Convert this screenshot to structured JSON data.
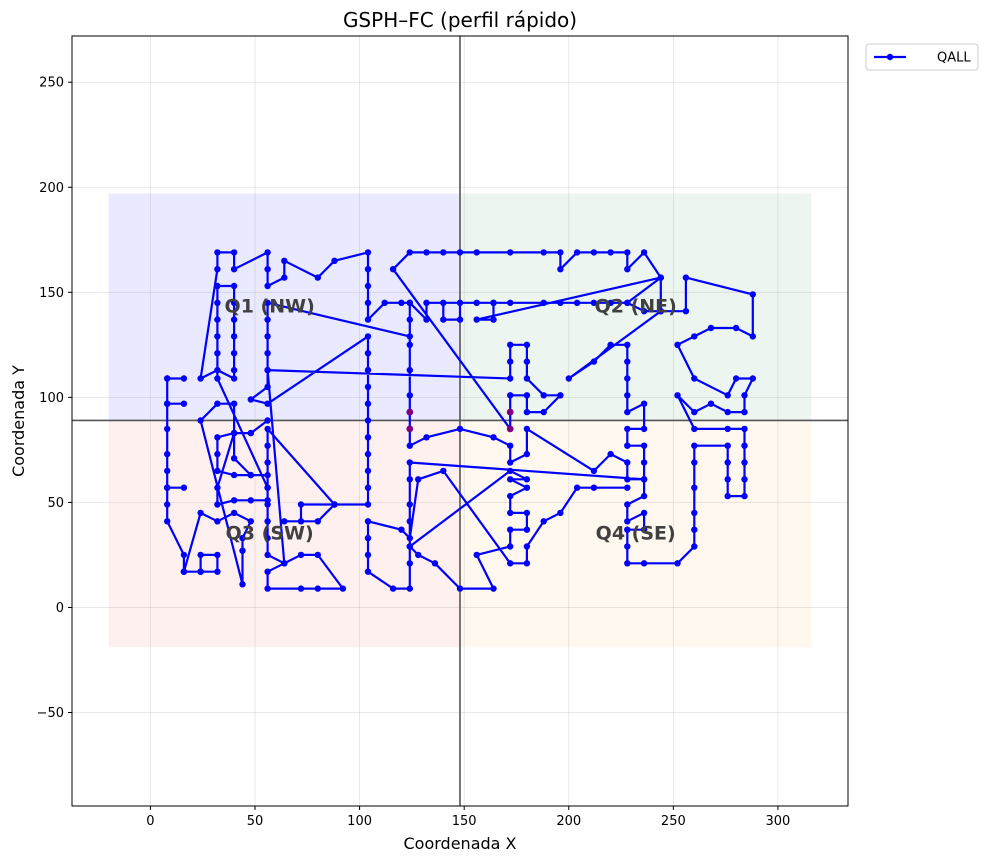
{
  "chart_data": {
    "type": "line",
    "title": "GSPH–FC (perfil rápido)",
    "xlabel": "Coordenada X",
    "ylabel": "Coordenada Y",
    "xlim": [
      -37.5,
      333.5
    ],
    "ylim": [
      -94.5,
      272
    ],
    "xticks": [
      0,
      50,
      100,
      150,
      200,
      250,
      300
    ],
    "yticks": [
      -50,
      0,
      50,
      100,
      150,
      200,
      250
    ],
    "grid": true,
    "legend": {
      "placement": "outside top-right",
      "entries": [
        "QALL"
      ]
    },
    "colors": {
      "series": "#0000ff",
      "ref_lines": "#555555",
      "marked_point": "#800080"
    },
    "ref_lines": {
      "x": 148,
      "y": 89
    },
    "regions": [
      {
        "label": "Q1 (NW)",
        "x": [
          -20,
          148
        ],
        "y": [
          89,
          197
        ],
        "color": "#0000ff",
        "label_at": [
          57,
          143
        ]
      },
      {
        "label": "Q2 (NE)",
        "x": [
          148,
          316
        ],
        "y": [
          89,
          197
        ],
        "color": "#2e8b57",
        "label_at": [
          232,
          143
        ]
      },
      {
        "label": "Q3 (SW)",
        "x": [
          -20,
          148
        ],
        "y": [
          -19,
          89
        ],
        "color": "#ff5555",
        "label_at": [
          57,
          35
        ]
      },
      {
        "label": "Q4 (SE)",
        "x": [
          148,
          316
        ],
        "y": [
          -19,
          89
        ],
        "color": "#f5b14a",
        "label_at": [
          232,
          35
        ]
      }
    ],
    "series": [
      {
        "name": "QALL",
        "points": [
          [
            8,
            109
          ],
          [
            16,
            109
          ],
          [
            8,
            109
          ],
          [
            8,
            97
          ],
          [
            16,
            97
          ],
          [
            8,
            97
          ],
          [
            8,
            85
          ],
          [
            8,
            73
          ],
          [
            8,
            65
          ],
          [
            8,
            57
          ],
          [
            16,
            57
          ],
          [
            8,
            57
          ],
          [
            8,
            49
          ],
          [
            8,
            41
          ],
          [
            16,
            25
          ],
          [
            16,
            17
          ],
          [
            24,
            17
          ],
          [
            24,
            25
          ],
          [
            32,
            25
          ],
          [
            32,
            17
          ],
          [
            24,
            17
          ],
          [
            16,
            17
          ],
          [
            24,
            45
          ],
          [
            32,
            41
          ],
          [
            40,
            45
          ],
          [
            48,
            41
          ],
          [
            44,
            33
          ],
          [
            44,
            27
          ],
          [
            44,
            11
          ],
          [
            24,
            89
          ],
          [
            32,
            97
          ],
          [
            40,
            97
          ],
          [
            40,
            83
          ],
          [
            48,
            83
          ],
          [
            56,
            89
          ],
          [
            48,
            83
          ],
          [
            40,
            83
          ],
          [
            40,
            71
          ],
          [
            48,
            63
          ],
          [
            56,
            63
          ],
          [
            48,
            63
          ],
          [
            40,
            63
          ],
          [
            32,
            65
          ],
          [
            32,
            73
          ],
          [
            32,
            81
          ],
          [
            40,
            83
          ],
          [
            32,
            57
          ],
          [
            32,
            49
          ],
          [
            40,
            51
          ],
          [
            48,
            51
          ],
          [
            56,
            51
          ],
          [
            56,
            57
          ],
          [
            32,
            109
          ],
          [
            32,
            121
          ],
          [
            32,
            129
          ],
          [
            32,
            137
          ],
          [
            32,
            145
          ],
          [
            32,
            153
          ],
          [
            40,
            153
          ],
          [
            40,
            145
          ],
          [
            40,
            137
          ],
          [
            40,
            129
          ],
          [
            40,
            121
          ],
          [
            40,
            113
          ],
          [
            40,
            109
          ],
          [
            32,
            113
          ],
          [
            24,
            109
          ],
          [
            32,
            161
          ],
          [
            32,
            169
          ],
          [
            40,
            169
          ],
          [
            40,
            161
          ],
          [
            56,
            169
          ],
          [
            56,
            161
          ],
          [
            56,
            153
          ],
          [
            64,
            157
          ],
          [
            64,
            165
          ],
          [
            80,
            157
          ],
          [
            88,
            165
          ],
          [
            104,
            169
          ],
          [
            104,
            161
          ],
          [
            104,
            153
          ],
          [
            104,
            145
          ],
          [
            104,
            137
          ],
          [
            112,
            145
          ],
          [
            120,
            145
          ],
          [
            124,
            145
          ],
          [
            124,
            137
          ],
          [
            124,
            129
          ],
          [
            56,
            145
          ],
          [
            56,
            137
          ],
          [
            56,
            129
          ],
          [
            56,
            121
          ],
          [
            56,
            113
          ],
          [
            56,
            105
          ],
          [
            48,
            99
          ],
          [
            56,
            97
          ],
          [
            104,
            129
          ],
          [
            104,
            121
          ],
          [
            104,
            113
          ],
          [
            104,
            105
          ],
          [
            104,
            97
          ],
          [
            104,
            89
          ],
          [
            104,
            81
          ],
          [
            104,
            73
          ],
          [
            104,
            65
          ],
          [
            104,
            57
          ],
          [
            104,
            49
          ],
          [
            88,
            49
          ],
          [
            80,
            41
          ],
          [
            64,
            41
          ],
          [
            72,
            41
          ],
          [
            72,
            49
          ],
          [
            88,
            49
          ],
          [
            56,
            85
          ],
          [
            56,
            77
          ],
          [
            56,
            69
          ],
          [
            56,
            57
          ],
          [
            56,
            49
          ],
          [
            56,
            41
          ],
          [
            56,
            33
          ],
          [
            56,
            25
          ],
          [
            64,
            21
          ],
          [
            72,
            25
          ],
          [
            80,
            25
          ],
          [
            92,
            9
          ],
          [
            80,
            9
          ],
          [
            72,
            9
          ],
          [
            56,
            9
          ],
          [
            56,
            17
          ],
          [
            64,
            21
          ],
          [
            56,
            113
          ],
          [
            172,
            109
          ],
          [
            172,
            117
          ],
          [
            172,
            125
          ],
          [
            180,
            125
          ],
          [
            180,
            117
          ],
          [
            180,
            109
          ],
          [
            188,
            101
          ],
          [
            196,
            101
          ],
          [
            188,
            93
          ],
          [
            180,
            93
          ],
          [
            180,
            101
          ],
          [
            172,
            101
          ],
          [
            172,
            93
          ],
          [
            172,
            85
          ],
          [
            116,
            161
          ],
          [
            124,
            169
          ],
          [
            132,
            169
          ],
          [
            140,
            169
          ],
          [
            148,
            169
          ],
          [
            156,
            169
          ],
          [
            172,
            169
          ],
          [
            188,
            169
          ],
          [
            196,
            169
          ],
          [
            196,
            161
          ],
          [
            204,
            169
          ],
          [
            212,
            169
          ],
          [
            220,
            169
          ],
          [
            228,
            169
          ],
          [
            228,
            161
          ],
          [
            236,
            169
          ],
          [
            244,
            157
          ],
          [
            228,
            145
          ],
          [
            140,
            145
          ],
          [
            140,
            137
          ],
          [
            148,
            137
          ],
          [
            148,
            145
          ],
          [
            156,
            145
          ],
          [
            164,
            145
          ],
          [
            172,
            145
          ],
          [
            188,
            145
          ],
          [
            196,
            145
          ],
          [
            204,
            145
          ],
          [
            212,
            145
          ],
          [
            220,
            145
          ],
          [
            228,
            145
          ],
          [
            236,
            141
          ],
          [
            244,
            141
          ],
          [
            244,
            157
          ],
          [
            156,
            137
          ],
          [
            164,
            137
          ],
          [
            164,
            145
          ],
          [
            132,
            145
          ],
          [
            132,
            137
          ],
          [
            124,
            145
          ],
          [
            124,
            125
          ],
          [
            124,
            113
          ],
          [
            124,
            101
          ],
          [
            124,
            93
          ],
          [
            124,
            85
          ],
          [
            124,
            77
          ],
          [
            132,
            81
          ],
          [
            148,
            85
          ],
          [
            164,
            81
          ],
          [
            172,
            77
          ],
          [
            172,
            69
          ],
          [
            180,
            73
          ],
          [
            180,
            85
          ],
          [
            212,
            65
          ],
          [
            220,
            73
          ],
          [
            228,
            69
          ],
          [
            228,
            61
          ],
          [
            236,
            61
          ],
          [
            236,
            53
          ],
          [
            228,
            49
          ],
          [
            228,
            41
          ],
          [
            236,
            45
          ],
          [
            236,
            37
          ],
          [
            228,
            37
          ],
          [
            228,
            29
          ],
          [
            228,
            21
          ],
          [
            236,
            21
          ],
          [
            252,
            21
          ],
          [
            260,
            29
          ],
          [
            260,
            37
          ],
          [
            260,
            45
          ],
          [
            260,
            57
          ],
          [
            260,
            69
          ],
          [
            260,
            77
          ],
          [
            276,
            77
          ],
          [
            276,
            69
          ],
          [
            276,
            61
          ],
          [
            276,
            53
          ],
          [
            284,
            53
          ],
          [
            284,
            61
          ],
          [
            284,
            69
          ],
          [
            284,
            77
          ],
          [
            284,
            85
          ],
          [
            276,
            85
          ],
          [
            260,
            85
          ],
          [
            252,
            101
          ],
          [
            260,
            93
          ],
          [
            268,
            97
          ],
          [
            276,
            93
          ],
          [
            284,
            93
          ],
          [
            284,
            101
          ],
          [
            288,
            109
          ],
          [
            280,
            109
          ],
          [
            276,
            101
          ],
          [
            260,
            109
          ],
          [
            252,
            125
          ],
          [
            260,
            129
          ],
          [
            268,
            133
          ],
          [
            280,
            133
          ],
          [
            288,
            129
          ],
          [
            288,
            149
          ],
          [
            256,
            157
          ],
          [
            256,
            141
          ],
          [
            244,
            141
          ],
          [
            200,
            109
          ],
          [
            212,
            117
          ],
          [
            220,
            125
          ],
          [
            228,
            125
          ],
          [
            228,
            117
          ],
          [
            228,
            109
          ],
          [
            228,
            101
          ],
          [
            228,
            93
          ],
          [
            236,
            97
          ],
          [
            236,
            85
          ],
          [
            228,
            85
          ],
          [
            228,
            77
          ],
          [
            236,
            77
          ],
          [
            236,
            69
          ],
          [
            236,
            61
          ],
          [
            124,
            69
          ],
          [
            124,
            61
          ],
          [
            124,
            49
          ],
          [
            124,
            41
          ],
          [
            124,
            29
          ],
          [
            128,
            25
          ],
          [
            136,
            21
          ],
          [
            148,
            9
          ],
          [
            164,
            9
          ],
          [
            156,
            25
          ],
          [
            172,
            29
          ],
          [
            172,
            37
          ],
          [
            180,
            37
          ],
          [
            180,
            45
          ],
          [
            172,
            45
          ],
          [
            172,
            53
          ],
          [
            180,
            57
          ],
          [
            172,
            61
          ],
          [
            180,
            61
          ],
          [
            172,
            65
          ],
          [
            124,
            29
          ],
          [
            124,
            21
          ],
          [
            124,
            9
          ],
          [
            116,
            9
          ],
          [
            104,
            17
          ],
          [
            104,
            25
          ],
          [
            104,
            33
          ],
          [
            104,
            41
          ],
          [
            120,
            37
          ],
          [
            124,
            33
          ],
          [
            128,
            61
          ],
          [
            140,
            65
          ],
          [
            172,
            21
          ],
          [
            180,
            21
          ],
          [
            180,
            29
          ],
          [
            188,
            41
          ],
          [
            196,
            45
          ],
          [
            204,
            57
          ],
          [
            212,
            57
          ],
          [
            228,
            57
          ]
        ]
      }
    ],
    "marked_points": [
      [
        124,
        93
      ],
      [
        124,
        85
      ],
      [
        172,
        93
      ],
      [
        172,
        85
      ]
    ]
  },
  "legend": {
    "label": "QALL"
  }
}
